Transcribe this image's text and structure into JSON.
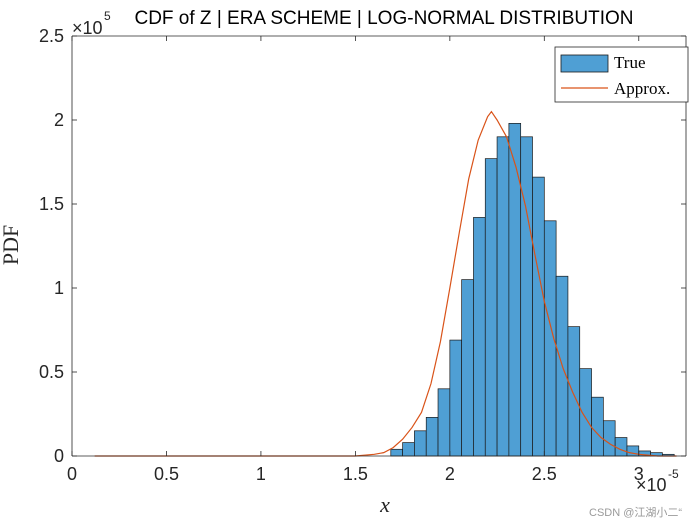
{
  "chart_data": {
    "type": "histogram",
    "title": "CDF of Z | ERA SCHEME | LOG-NORMAL DISTRIBUTION",
    "xlabel": "x",
    "ylabel": "PDF",
    "x_exponent": "-5",
    "y_exponent": "5",
    "xlim": [
      0,
      3.25
    ],
    "ylim": [
      0,
      2.5
    ],
    "xticks": [
      0,
      0.5,
      1,
      1.5,
      2,
      2.5,
      3
    ],
    "xtick_labels": [
      "0",
      "0.5",
      "1",
      "1.5",
      "2",
      "2.5",
      "3"
    ],
    "yticks": [
      0,
      0.5,
      1,
      1.5,
      2,
      2.5
    ],
    "ytick_labels": [
      "0",
      "0.5",
      "1",
      "1.5",
      "2",
      "2.5"
    ],
    "bin_width": 0.0625,
    "bins": [
      {
        "x0": 1.6875,
        "height": 0.04
      },
      {
        "x0": 1.75,
        "height": 0.08
      },
      {
        "x0": 1.8125,
        "height": 0.15
      },
      {
        "x0": 1.875,
        "height": 0.23
      },
      {
        "x0": 1.9375,
        "height": 0.4
      },
      {
        "x0": 2.0,
        "height": 0.69
      },
      {
        "x0": 2.0625,
        "height": 1.05
      },
      {
        "x0": 2.125,
        "height": 1.42
      },
      {
        "x0": 2.1875,
        "height": 1.77
      },
      {
        "x0": 2.25,
        "height": 1.9
      },
      {
        "x0": 2.3125,
        "height": 1.98
      },
      {
        "x0": 2.375,
        "height": 1.9
      },
      {
        "x0": 2.4375,
        "height": 1.66
      },
      {
        "x0": 2.5,
        "height": 1.4
      },
      {
        "x0": 2.5625,
        "height": 1.07
      },
      {
        "x0": 2.625,
        "height": 0.77
      },
      {
        "x0": 2.6875,
        "height": 0.52
      },
      {
        "x0": 2.75,
        "height": 0.35
      },
      {
        "x0": 2.8125,
        "height": 0.21
      },
      {
        "x0": 2.875,
        "height": 0.11
      },
      {
        "x0": 2.9375,
        "height": 0.06
      },
      {
        "x0": 3.0,
        "height": 0.03
      },
      {
        "x0": 3.0625,
        "height": 0.02
      },
      {
        "x0": 3.125,
        "height": 0.01
      }
    ],
    "approx_curve": {
      "x": [
        0.12,
        1.0,
        1.5,
        1.6,
        1.65,
        1.7,
        1.75,
        1.8,
        1.85,
        1.9,
        1.95,
        2.0,
        2.05,
        2.1,
        2.15,
        2.2,
        2.22,
        2.25,
        2.3,
        2.35,
        2.4,
        2.45,
        2.5,
        2.55,
        2.6,
        2.65,
        2.7,
        2.75,
        2.8,
        2.85,
        2.9,
        2.95,
        3.0,
        3.1,
        3.2
      ],
      "y": [
        0,
        0,
        0,
        0.01,
        0.02,
        0.05,
        0.1,
        0.17,
        0.26,
        0.43,
        0.68,
        1.0,
        1.33,
        1.65,
        1.88,
        2.02,
        2.05,
        2.0,
        1.9,
        1.72,
        1.49,
        1.2,
        0.92,
        0.7,
        0.52,
        0.38,
        0.26,
        0.17,
        0.11,
        0.07,
        0.04,
        0.02,
        0.01,
        0.0,
        0.0
      ]
    },
    "legend": {
      "position": "top-right",
      "entries": [
        "True",
        "Approx."
      ]
    },
    "colors": {
      "bar_fill": "#4f9fd4",
      "bar_edge": "#1a1a1a",
      "curve": "#d95319",
      "axis": "#262626"
    }
  },
  "watermark": "CSDN @江湖小二“"
}
